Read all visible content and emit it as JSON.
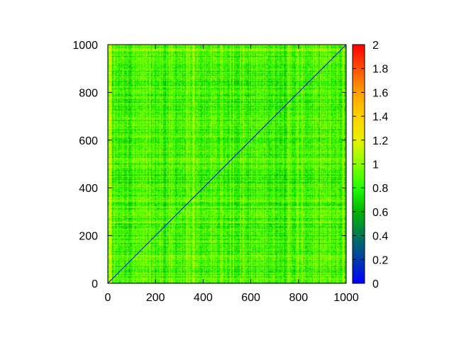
{
  "chart_data": {
    "type": "heatmap",
    "title": "",
    "xlabel": "",
    "ylabel": "",
    "xlim": [
      0,
      1000
    ],
    "ylim": [
      0,
      1000
    ],
    "x_ticks": [
      0,
      200,
      400,
      600,
      800,
      1000
    ],
    "y_ticks": [
      0,
      200,
      400,
      600,
      800,
      1000
    ],
    "x_tick_labels": [
      "0",
      "200",
      "400",
      "600",
      "800",
      "1000"
    ],
    "y_tick_labels": [
      "0",
      "200",
      "400",
      "600",
      "800",
      "1000"
    ],
    "grid": false,
    "matrix_size": 1000,
    "diagonal_value": 0,
    "typical_value_range": [
      0.6,
      1.15
    ],
    "typical_value": 0.85,
    "colorbar": {
      "placement": "right",
      "range": [
        0,
        2
      ],
      "ticks": [
        0,
        0.2,
        0.4,
        0.6,
        0.8,
        1,
        1.2,
        1.4,
        1.6,
        1.8,
        2
      ],
      "tick_labels": [
        "0",
        "0.2",
        "0.4",
        "0.6",
        "0.8",
        "1",
        "1.2",
        "1.4",
        "1.6",
        "1.8",
        "2"
      ],
      "colors": [
        {
          "value": 0,
          "color": "#0000ff"
        },
        {
          "value": 0.6,
          "color": "#00b400"
        },
        {
          "value": 0.8,
          "color": "#22ff00"
        },
        {
          "value": 1.0,
          "color": "#88ff00"
        },
        {
          "value": 1.2,
          "color": "#e8f000"
        },
        {
          "value": 1.4,
          "color": "#ffd000"
        },
        {
          "value": 1.6,
          "color": "#ffa000"
        },
        {
          "value": 2.0,
          "color": "#ff0000"
        }
      ]
    }
  }
}
